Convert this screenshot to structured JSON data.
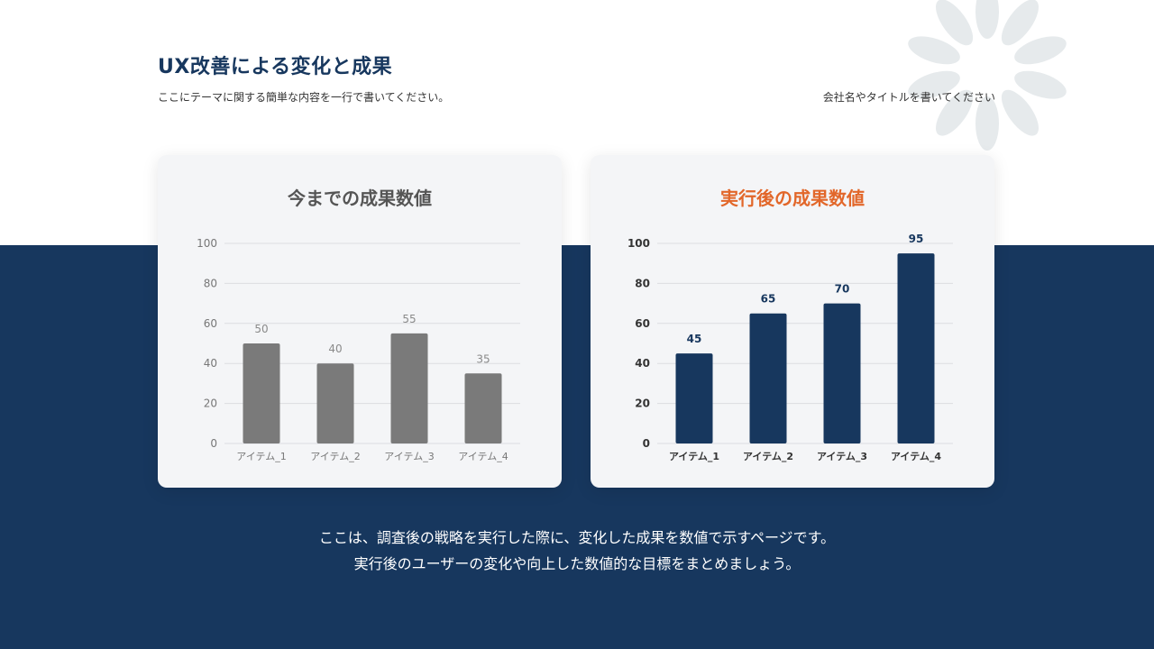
{
  "header": {
    "title": "UX改善による変化と成果",
    "subtitle": "ここにテーマに関する簡単な内容を一行で書いてください。",
    "company": "会社名やタイトルを書いてください"
  },
  "colors": {
    "navy": "#17375e",
    "accent": "#e2672a",
    "gray_bar": "#7a7a7a"
  },
  "chart_data": [
    {
      "type": "bar",
      "title": "今までの成果数値",
      "categories": [
        "アイテム_1",
        "アイテム_2",
        "アイテム_3",
        "アイテム_4"
      ],
      "values": [
        50,
        40,
        55,
        35
      ],
      "yticks": [
        0,
        20,
        40,
        60,
        80,
        100
      ],
      "ylim": [
        0,
        100
      ],
      "grid": true,
      "bar_color": "#7a7a7a",
      "label_color": "#8a8a8a",
      "tick_color": "#777777",
      "bold_labels": false
    },
    {
      "type": "bar",
      "title": "実行後の成果数値",
      "categories": [
        "アイテム_1",
        "アイテム_2",
        "アイテム_3",
        "アイテム_4"
      ],
      "values": [
        45,
        65,
        70,
        95
      ],
      "yticks": [
        0,
        20,
        40,
        60,
        80,
        100
      ],
      "ylim": [
        0,
        100
      ],
      "grid": true,
      "bar_color": "#17375e",
      "label_color": "#17375e",
      "tick_color": "#333333",
      "bold_labels": true
    }
  ],
  "footer": {
    "line1": "ここは、調査後の戦略を実行した際に、変化した成果を数値で示すページです。",
    "line2": "実行後のユーザーの変化や向上した数値的な目標をまとめましょう。"
  }
}
